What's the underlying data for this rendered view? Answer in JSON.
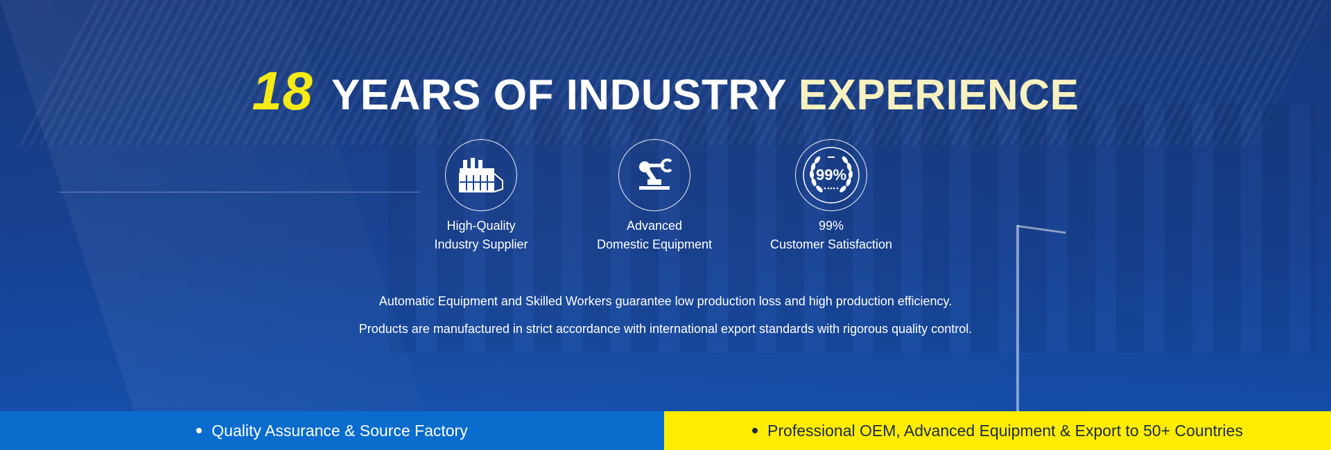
{
  "hero": {
    "title_number": "18",
    "title_main": "YEARS OF INDUSTRY",
    "title_accent": "EXPERIENCE",
    "features": [
      {
        "icon": "factory-icon",
        "line1": "High-Quality",
        "line2": "Industry Supplier"
      },
      {
        "icon": "robotic-arm-icon",
        "line1": "Advanced",
        "line2": "Domestic Equipment"
      },
      {
        "icon": "laurel-badge-icon",
        "badge_text": "99%",
        "line1": "99%",
        "line2": "Customer Satisfaction"
      }
    ],
    "description_line1": "Automatic Equipment and Skilled Workers guarantee low production loss and high production efficiency.",
    "description_line2": "Products are manufactured in strict accordance with international export standards with rigorous quality control."
  },
  "bottom_bar": {
    "left_text": "Quality Assurance & Source Factory",
    "right_text": "Professional OEM, Advanced Equipment & Export to 50+ Countries"
  },
  "colors": {
    "title_number": "#f6ea17",
    "bar_left": "#0a6ccd",
    "bar_right": "#ffed00",
    "overlay_blue": "#163882"
  }
}
